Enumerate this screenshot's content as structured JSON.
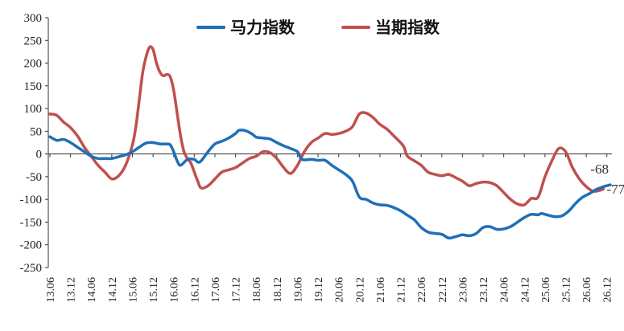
{
  "chart_data": {
    "type": "line",
    "xlabel": "",
    "ylabel": "",
    "ylim": [
      -250,
      300
    ],
    "yticks": [
      300,
      250,
      200,
      150,
      100,
      50,
      0,
      -50,
      -100,
      -150,
      -200,
      -250
    ],
    "xtick_labels": [
      "13.06",
      "13.12",
      "14.06",
      "14.12",
      "15.06",
      "15.12",
      "16.06",
      "16.12",
      "17.06",
      "17.12",
      "18.06",
      "18.12",
      "19.06",
      "19.12",
      "20.06",
      "20.12",
      "21.06",
      "21.12",
      "22.06",
      "22.12",
      "23.06",
      "23.12",
      "24.06",
      "24.12",
      "25.06",
      "25.12",
      "26.06",
      "26.12"
    ],
    "grid": false,
    "legend_position": "top",
    "series": [
      {
        "name": "马力指数",
        "color": "#1f6fb8",
        "end_label": "-68",
        "points": [
          [
            0,
            38
          ],
          [
            2,
            30
          ],
          [
            4,
            32
          ],
          [
            6,
            25
          ],
          [
            8,
            15
          ],
          [
            10,
            5
          ],
          [
            12,
            -5
          ],
          [
            14,
            -10
          ],
          [
            16,
            -10
          ],
          [
            18,
            -10
          ],
          [
            20,
            -6
          ],
          [
            22,
            -2
          ],
          [
            24,
            5
          ],
          [
            26,
            15
          ],
          [
            28,
            24
          ],
          [
            30,
            25
          ],
          [
            32,
            22
          ],
          [
            34,
            22
          ],
          [
            35,
            20
          ],
          [
            36,
            5
          ],
          [
            37,
            -15
          ],
          [
            38,
            -25
          ],
          [
            40,
            -12
          ],
          [
            42,
            -12
          ],
          [
            43,
            -18
          ],
          [
            44,
            -15
          ],
          [
            46,
            5
          ],
          [
            48,
            22
          ],
          [
            50,
            28
          ],
          [
            52,
            35
          ],
          [
            54,
            45
          ],
          [
            55,
            52
          ],
          [
            57,
            51
          ],
          [
            59,
            43
          ],
          [
            60,
            37
          ],
          [
            62,
            35
          ],
          [
            64,
            33
          ],
          [
            66,
            25
          ],
          [
            68,
            18
          ],
          [
            70,
            12
          ],
          [
            72,
            5
          ],
          [
            73,
            -10
          ],
          [
            74,
            -13
          ],
          [
            76,
            -12
          ],
          [
            78,
            -14
          ],
          [
            80,
            -14
          ],
          [
            82,
            -25
          ],
          [
            84,
            -35
          ],
          [
            86,
            -45
          ],
          [
            88,
            -60
          ],
          [
            90,
            -95
          ],
          [
            92,
            -100
          ],
          [
            94,
            -108
          ],
          [
            96,
            -112
          ],
          [
            98,
            -113
          ],
          [
            100,
            -118
          ],
          [
            102,
            -125
          ],
          [
            104,
            -135
          ],
          [
            106,
            -145
          ],
          [
            108,
            -162
          ],
          [
            110,
            -172
          ],
          [
            112,
            -175
          ],
          [
            114,
            -177
          ],
          [
            116,
            -185
          ],
          [
            118,
            -182
          ],
          [
            120,
            -178
          ],
          [
            122,
            -180
          ],
          [
            124,
            -175
          ],
          [
            126,
            -162
          ],
          [
            128,
            -160
          ],
          [
            130,
            -166
          ],
          [
            132,
            -165
          ],
          [
            134,
            -160
          ],
          [
            136,
            -150
          ],
          [
            138,
            -140
          ],
          [
            140,
            -133
          ],
          [
            142,
            -134
          ],
          [
            143,
            -131
          ],
          [
            145,
            -135
          ],
          [
            147,
            -138
          ],
          [
            149,
            -136
          ],
          [
            151,
            -125
          ],
          [
            153,
            -108
          ],
          [
            155,
            -95
          ],
          [
            157,
            -87
          ],
          [
            159,
            -78
          ],
          [
            161,
            -72
          ],
          [
            163,
            -68
          ]
        ]
      },
      {
        "name": "当期指数",
        "color": "#c0504d",
        "end_label": "-77",
        "points": [
          [
            0,
            88
          ],
          [
            2,
            85
          ],
          [
            4,
            70
          ],
          [
            6,
            58
          ],
          [
            8,
            40
          ],
          [
            10,
            15
          ],
          [
            12,
            -5
          ],
          [
            14,
            -25
          ],
          [
            16,
            -40
          ],
          [
            18,
            -55
          ],
          [
            20,
            -48
          ],
          [
            22,
            -25
          ],
          [
            24,
            20
          ],
          [
            25,
            60
          ],
          [
            26,
            120
          ],
          [
            27,
            180
          ],
          [
            28,
            215
          ],
          [
            29,
            235
          ],
          [
            30,
            230
          ],
          [
            31,
            200
          ],
          [
            32,
            180
          ],
          [
            33,
            172
          ],
          [
            34,
            175
          ],
          [
            35,
            170
          ],
          [
            36,
            140
          ],
          [
            37,
            90
          ],
          [
            38,
            40
          ],
          [
            39,
            5
          ],
          [
            40,
            -10
          ],
          [
            41,
            -20
          ],
          [
            42,
            -40
          ],
          [
            43,
            -60
          ],
          [
            44,
            -75
          ],
          [
            46,
            -70
          ],
          [
            48,
            -55
          ],
          [
            50,
            -40
          ],
          [
            52,
            -35
          ],
          [
            54,
            -30
          ],
          [
            56,
            -20
          ],
          [
            58,
            -10
          ],
          [
            60,
            -5
          ],
          [
            62,
            5
          ],
          [
            64,
            3
          ],
          [
            66,
            -10
          ],
          [
            68,
            -30
          ],
          [
            70,
            -43
          ],
          [
            72,
            -25
          ],
          [
            74,
            5
          ],
          [
            76,
            25
          ],
          [
            78,
            35
          ],
          [
            80,
            45
          ],
          [
            82,
            43
          ],
          [
            84,
            45
          ],
          [
            86,
            50
          ],
          [
            88,
            60
          ],
          [
            90,
            88
          ],
          [
            92,
            90
          ],
          [
            94,
            80
          ],
          [
            96,
            65
          ],
          [
            98,
            55
          ],
          [
            100,
            40
          ],
          [
            102,
            25
          ],
          [
            103,
            15
          ],
          [
            104,
            -5
          ],
          [
            106,
            -15
          ],
          [
            108,
            -25
          ],
          [
            110,
            -40
          ],
          [
            112,
            -45
          ],
          [
            114,
            -48
          ],
          [
            116,
            -45
          ],
          [
            118,
            -52
          ],
          [
            120,
            -60
          ],
          [
            122,
            -70
          ],
          [
            124,
            -65
          ],
          [
            126,
            -62
          ],
          [
            128,
            -63
          ],
          [
            130,
            -70
          ],
          [
            132,
            -85
          ],
          [
            134,
            -100
          ],
          [
            136,
            -110
          ],
          [
            138,
            -112
          ],
          [
            140,
            -98
          ],
          [
            142,
            -95
          ],
          [
            144,
            -50
          ],
          [
            146,
            -15
          ],
          [
            148,
            12
          ],
          [
            150,
            5
          ],
          [
            152,
            -30
          ],
          [
            154,
            -55
          ],
          [
            156,
            -72
          ],
          [
            158,
            -82
          ],
          [
            160,
            -80
          ],
          [
            161,
            -77
          ]
        ]
      }
    ],
    "x_domain": [
      0,
      163
    ],
    "x_tick_step": 6
  }
}
